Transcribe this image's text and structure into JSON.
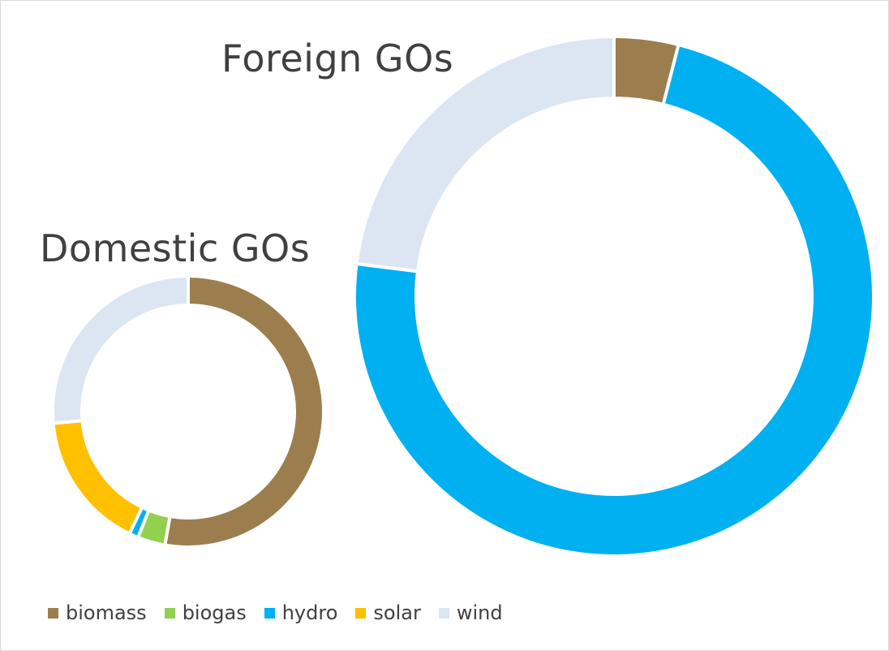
{
  "chart_data": [
    {
      "type": "pie",
      "variant": "doughnut",
      "title": "Domestic GOs",
      "categories": [
        "biomass",
        "biogas",
        "hydro",
        "solar",
        "wind"
      ],
      "values": [
        48,
        3,
        1,
        15,
        24
      ],
      "colors": [
        "#9C7E4E",
        "#92D050",
        "#00B0F0",
        "#FFC000",
        "#DCE6F2"
      ]
    },
    {
      "type": "pie",
      "variant": "doughnut",
      "title": "Foreign GOs",
      "categories": [
        "biomass",
        "biogas",
        "hydro",
        "solar",
        "wind"
      ],
      "values": [
        4,
        0,
        73,
        0,
        23
      ],
      "colors": [
        "#9C7E4E",
        "#92D050",
        "#00B0F0",
        "#FFC000",
        "#DCE6F2"
      ]
    }
  ],
  "legend": {
    "placement": "bottom-left",
    "items": [
      {
        "label": "biomass",
        "color": "#9C7E4E"
      },
      {
        "label": "biogas",
        "color": "#92D050"
      },
      {
        "label": "hydro",
        "color": "#00B0F0"
      },
      {
        "label": "solar",
        "color": "#FFC000"
      },
      {
        "label": "wind",
        "color": "#DCE6F2"
      }
    ]
  }
}
